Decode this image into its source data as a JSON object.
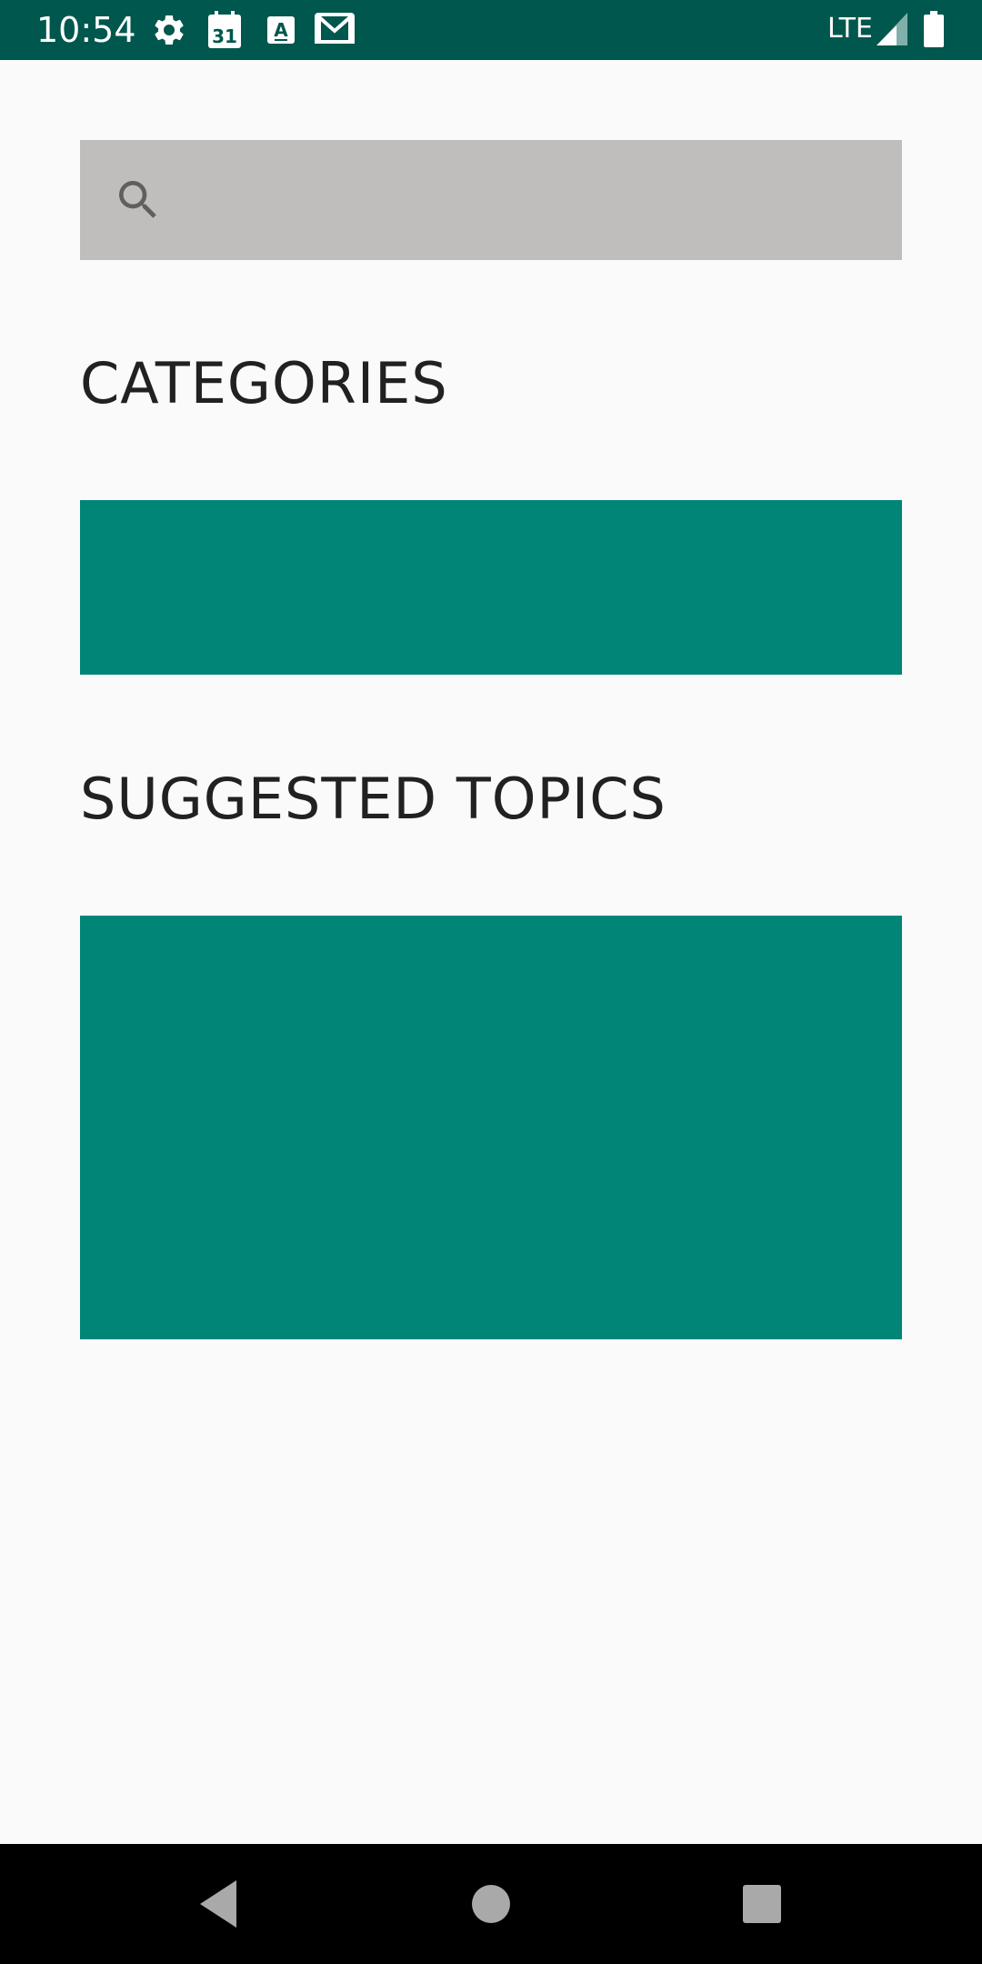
{
  "status_bar": {
    "time": "10:54",
    "network": "LTE",
    "icons": [
      "settings-icon",
      "calendar-icon",
      "font-app-icon",
      "gmail-icon",
      "signal-icon",
      "battery-icon"
    ],
    "calendar_day": "31",
    "app_letter": "A",
    "background_color": "#00574d"
  },
  "search": {
    "icon": "search-icon",
    "value": "",
    "placeholder": "",
    "background_color": "#bfbebd"
  },
  "categories": {
    "title": "CATEGORIES",
    "panel_color": "#008577"
  },
  "suggested_topics": {
    "title": "SUGGESTED TOPICS",
    "panel_color": "#008577"
  },
  "nav_bar": {
    "buttons": [
      "back-icon",
      "home-icon",
      "recents-icon"
    ]
  }
}
